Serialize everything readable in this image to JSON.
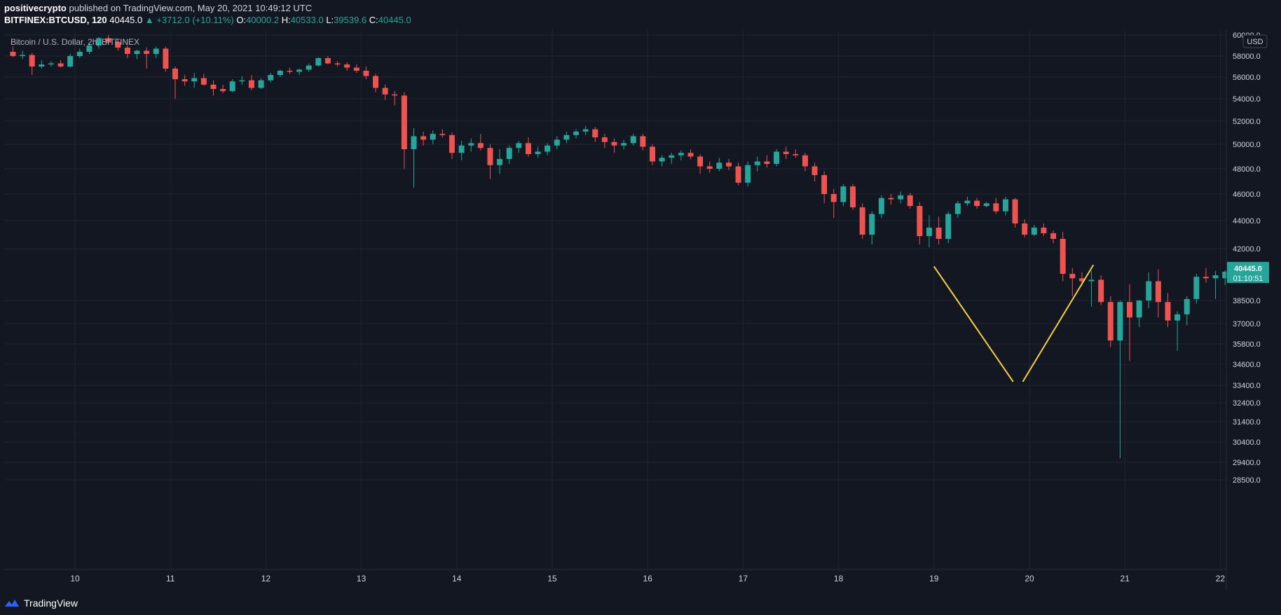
{
  "header": {
    "author": "positivecrypto",
    "published": "published on TradingView.com, May 20, 2021 10:49:12 UTC",
    "symbol": "BITFINEX:BTCUSD, 120",
    "last": "40445.0",
    "change": "▲ +3712.0 (+10.11%)",
    "o_label": "O:",
    "o_value": "40000.2",
    "h_label": "H:",
    "h_value": "40533.0",
    "l_label": "L:",
    "l_value": "39539.6",
    "c_label": "C:",
    "c_value": "40445.0"
  },
  "chart_title": "Bitcoin / U.S. Dollar, 2h, BITFINEX",
  "currency_badge": "USD",
  "price_tag": {
    "price": "40445.0",
    "countdown": "01:10:51"
  },
  "footer": {
    "brand": "TradingView"
  },
  "colors": {
    "background": "#131722",
    "up": "#26a69a",
    "down": "#ef5350",
    "trendline": "#f4d03f",
    "grid": "#1f2433",
    "text": "#d1d4dc"
  },
  "chart_data": {
    "type": "candlestick",
    "title": "Bitcoin / U.S. Dollar, 2h, BITFINEX",
    "price_ticks": [
      {
        "label": "60000.0",
        "value": 60000
      },
      {
        "label": "58000.0",
        "value": 58000
      },
      {
        "label": "56000.0",
        "value": 56000
      },
      {
        "label": "54000.0",
        "value": 54000
      },
      {
        "label": "52000.0",
        "value": 52000
      },
      {
        "label": "50000.0",
        "value": 50000
      },
      {
        "label": "48000.0",
        "value": 48000
      },
      {
        "label": "46000.0",
        "value": 46000
      },
      {
        "label": "44000.0",
        "value": 44000
      },
      {
        "label": "42000.0",
        "value": 42000
      },
      {
        "label": "38500.0",
        "value": 38500
      },
      {
        "label": "37000.0",
        "value": 37000
      },
      {
        "label": "35800.0",
        "value": 35800
      },
      {
        "label": "34600.0",
        "value": 34600
      },
      {
        "label": "33400.0",
        "value": 33400
      },
      {
        "label": "32400.0",
        "value": 32400
      },
      {
        "label": "31400.0",
        "value": 31400
      },
      {
        "label": "30400.0",
        "value": 30400
      },
      {
        "label": "29400.0",
        "value": 29400
      },
      {
        "label": "28500.0",
        "value": 28500
      }
    ],
    "date_ticks": [
      {
        "label": "10",
        "day": 10
      },
      {
        "label": "11",
        "day": 11
      },
      {
        "label": "12",
        "day": 12
      },
      {
        "label": "13",
        "day": 13
      },
      {
        "label": "14",
        "day": 14
      },
      {
        "label": "15",
        "day": 15
      },
      {
        "label": "16",
        "day": 16
      },
      {
        "label": "17",
        "day": 17
      },
      {
        "label": "18",
        "day": 18
      },
      {
        "label": "19",
        "day": 19
      },
      {
        "label": "20",
        "day": 20
      },
      {
        "label": "21",
        "day": 21
      },
      {
        "label": "22",
        "day": 22
      }
    ],
    "candles": [
      {
        "day": 9.35,
        "o": 58400,
        "h": 58900,
        "l": 57900,
        "c": 58000
      },
      {
        "day": 9.45,
        "o": 58000,
        "h": 58500,
        "l": 57700,
        "c": 58100
      },
      {
        "day": 9.55,
        "o": 58100,
        "h": 58300,
        "l": 56200,
        "c": 57000
      },
      {
        "day": 9.65,
        "o": 57000,
        "h": 57600,
        "l": 56800,
        "c": 57200
      },
      {
        "day": 9.75,
        "o": 57200,
        "h": 57500,
        "l": 57000,
        "c": 57300
      },
      {
        "day": 9.85,
        "o": 57300,
        "h": 57600,
        "l": 56900,
        "c": 57000
      },
      {
        "day": 9.95,
        "o": 57000,
        "h": 58200,
        "l": 56900,
        "c": 58000
      },
      {
        "day": 10.05,
        "o": 58000,
        "h": 58700,
        "l": 57800,
        "c": 58400
      },
      {
        "day": 10.15,
        "o": 58400,
        "h": 59200,
        "l": 58200,
        "c": 59000
      },
      {
        "day": 10.25,
        "o": 59000,
        "h": 59800,
        "l": 58700,
        "c": 59700
      },
      {
        "day": 10.35,
        "o": 59700,
        "h": 60000,
        "l": 59200,
        "c": 59300
      },
      {
        "day": 10.45,
        "o": 59300,
        "h": 59600,
        "l": 58500,
        "c": 58800
      },
      {
        "day": 10.55,
        "o": 58800,
        "h": 59000,
        "l": 57800,
        "c": 58200
      },
      {
        "day": 10.65,
        "o": 58200,
        "h": 58600,
        "l": 57700,
        "c": 58500
      },
      {
        "day": 10.75,
        "o": 58500,
        "h": 58800,
        "l": 56800,
        "c": 58200
      },
      {
        "day": 10.85,
        "o": 58200,
        "h": 58900,
        "l": 57800,
        "c": 58700
      },
      {
        "day": 10.95,
        "o": 58700,
        "h": 58900,
        "l": 56500,
        "c": 56800
      },
      {
        "day": 11.05,
        "o": 56800,
        "h": 57000,
        "l": 54000,
        "c": 55800
      },
      {
        "day": 11.15,
        "o": 55800,
        "h": 56200,
        "l": 55200,
        "c": 55600
      },
      {
        "day": 11.25,
        "o": 55600,
        "h": 56400,
        "l": 55000,
        "c": 55900
      },
      {
        "day": 11.35,
        "o": 55900,
        "h": 56300,
        "l": 55200,
        "c": 55300
      },
      {
        "day": 11.45,
        "o": 55300,
        "h": 55700,
        "l": 54300,
        "c": 54900
      },
      {
        "day": 11.55,
        "o": 54900,
        "h": 55300,
        "l": 54500,
        "c": 54700
      },
      {
        "day": 11.65,
        "o": 54700,
        "h": 55800,
        "l": 54600,
        "c": 55600
      },
      {
        "day": 11.75,
        "o": 55600,
        "h": 56100,
        "l": 55300,
        "c": 55700
      },
      {
        "day": 11.85,
        "o": 55700,
        "h": 56200,
        "l": 54800,
        "c": 55000
      },
      {
        "day": 11.95,
        "o": 55000,
        "h": 55900,
        "l": 54900,
        "c": 55700
      },
      {
        "day": 12.05,
        "o": 55700,
        "h": 56400,
        "l": 55500,
        "c": 56200
      },
      {
        "day": 12.15,
        "o": 56200,
        "h": 56700,
        "l": 56000,
        "c": 56600
      },
      {
        "day": 12.25,
        "o": 56600,
        "h": 56900,
        "l": 56300,
        "c": 56500
      },
      {
        "day": 12.35,
        "o": 56500,
        "h": 56800,
        "l": 56200,
        "c": 56700
      },
      {
        "day": 12.45,
        "o": 56700,
        "h": 57300,
        "l": 56500,
        "c": 57100
      },
      {
        "day": 12.55,
        "o": 57100,
        "h": 57900,
        "l": 57000,
        "c": 57800
      },
      {
        "day": 12.65,
        "o": 57800,
        "h": 58000,
        "l": 57200,
        "c": 57300
      },
      {
        "day": 12.75,
        "o": 57300,
        "h": 57500,
        "l": 57000,
        "c": 57200
      },
      {
        "day": 12.85,
        "o": 57200,
        "h": 57400,
        "l": 56600,
        "c": 56900
      },
      {
        "day": 12.95,
        "o": 56900,
        "h": 57200,
        "l": 56400,
        "c": 56600
      },
      {
        "day": 13.05,
        "o": 56600,
        "h": 57000,
        "l": 55800,
        "c": 56100
      },
      {
        "day": 13.15,
        "o": 56100,
        "h": 56300,
        "l": 54600,
        "c": 55000
      },
      {
        "day": 13.25,
        "o": 55000,
        "h": 55300,
        "l": 53900,
        "c": 54400
      },
      {
        "day": 13.35,
        "o": 54400,
        "h": 54700,
        "l": 53400,
        "c": 54300
      },
      {
        "day": 13.45,
        "o": 54300,
        "h": 54600,
        "l": 48000,
        "c": 49600
      },
      {
        "day": 13.55,
        "o": 49600,
        "h": 51400,
        "l": 46500,
        "c": 50700
      },
      {
        "day": 13.65,
        "o": 50700,
        "h": 51100,
        "l": 49900,
        "c": 50400
      },
      {
        "day": 13.75,
        "o": 50400,
        "h": 51200,
        "l": 50000,
        "c": 50900
      },
      {
        "day": 13.85,
        "o": 50900,
        "h": 51300,
        "l": 50600,
        "c": 50800
      },
      {
        "day": 13.95,
        "o": 50800,
        "h": 51000,
        "l": 48800,
        "c": 49300
      },
      {
        "day": 14.05,
        "o": 49300,
        "h": 50300,
        "l": 48700,
        "c": 49900
      },
      {
        "day": 14.15,
        "o": 49900,
        "h": 50500,
        "l": 49400,
        "c": 50100
      },
      {
        "day": 14.25,
        "o": 50100,
        "h": 50900,
        "l": 49500,
        "c": 49700
      },
      {
        "day": 14.35,
        "o": 49700,
        "h": 50000,
        "l": 47200,
        "c": 48300
      },
      {
        "day": 14.45,
        "o": 48300,
        "h": 49600,
        "l": 47600,
        "c": 48800
      },
      {
        "day": 14.55,
        "o": 48800,
        "h": 49900,
        "l": 48400,
        "c": 49700
      },
      {
        "day": 14.65,
        "o": 49700,
        "h": 50300,
        "l": 49300,
        "c": 50100
      },
      {
        "day": 14.75,
        "o": 50100,
        "h": 50600,
        "l": 49000,
        "c": 49200
      },
      {
        "day": 14.85,
        "o": 49200,
        "h": 49800,
        "l": 48900,
        "c": 49400
      },
      {
        "day": 14.95,
        "o": 49400,
        "h": 50100,
        "l": 49100,
        "c": 49900
      },
      {
        "day": 15.05,
        "o": 49900,
        "h": 50700,
        "l": 49600,
        "c": 50400
      },
      {
        "day": 15.15,
        "o": 50400,
        "h": 51100,
        "l": 50100,
        "c": 50800
      },
      {
        "day": 15.25,
        "o": 50800,
        "h": 51300,
        "l": 50500,
        "c": 51100
      },
      {
        "day": 15.35,
        "o": 51100,
        "h": 51600,
        "l": 50800,
        "c": 51300
      },
      {
        "day": 15.45,
        "o": 51300,
        "h": 51500,
        "l": 50200,
        "c": 50600
      },
      {
        "day": 15.55,
        "o": 50600,
        "h": 50900,
        "l": 49700,
        "c": 50200
      },
      {
        "day": 15.65,
        "o": 50200,
        "h": 50500,
        "l": 49300,
        "c": 49900
      },
      {
        "day": 15.75,
        "o": 49900,
        "h": 50400,
        "l": 49600,
        "c": 50100
      },
      {
        "day": 15.85,
        "o": 50100,
        "h": 50900,
        "l": 49900,
        "c": 50700
      },
      {
        "day": 15.95,
        "o": 50700,
        "h": 50900,
        "l": 49500,
        "c": 49800
      },
      {
        "day": 16.05,
        "o": 49800,
        "h": 50000,
        "l": 48300,
        "c": 48600
      },
      {
        "day": 16.15,
        "o": 48600,
        "h": 49100,
        "l": 48200,
        "c": 48900
      },
      {
        "day": 16.25,
        "o": 48900,
        "h": 49300,
        "l": 48400,
        "c": 49100
      },
      {
        "day": 16.35,
        "o": 49100,
        "h": 49500,
        "l": 48700,
        "c": 49300
      },
      {
        "day": 16.45,
        "o": 49300,
        "h": 49600,
        "l": 48800,
        "c": 49000
      },
      {
        "day": 16.55,
        "o": 49000,
        "h": 49200,
        "l": 47600,
        "c": 48200
      },
      {
        "day": 16.65,
        "o": 48200,
        "h": 48600,
        "l": 47700,
        "c": 48000
      },
      {
        "day": 16.75,
        "o": 48000,
        "h": 48900,
        "l": 47800,
        "c": 48500
      },
      {
        "day": 16.85,
        "o": 48500,
        "h": 48800,
        "l": 47900,
        "c": 48200
      },
      {
        "day": 16.95,
        "o": 48200,
        "h": 48500,
        "l": 46700,
        "c": 46900
      },
      {
        "day": 17.05,
        "o": 46900,
        "h": 48600,
        "l": 46600,
        "c": 48300
      },
      {
        "day": 17.15,
        "o": 48300,
        "h": 49000,
        "l": 47800,
        "c": 48600
      },
      {
        "day": 17.25,
        "o": 48600,
        "h": 49100,
        "l": 48100,
        "c": 48400
      },
      {
        "day": 17.35,
        "o": 48400,
        "h": 49600,
        "l": 48200,
        "c": 49400
      },
      {
        "day": 17.45,
        "o": 49400,
        "h": 49800,
        "l": 48800,
        "c": 49200
      },
      {
        "day": 17.55,
        "o": 49200,
        "h": 49600,
        "l": 48900,
        "c": 49100
      },
      {
        "day": 17.65,
        "o": 49100,
        "h": 49300,
        "l": 47800,
        "c": 48200
      },
      {
        "day": 17.75,
        "o": 48200,
        "h": 48500,
        "l": 47000,
        "c": 47500
      },
      {
        "day": 17.85,
        "o": 47500,
        "h": 47800,
        "l": 45300,
        "c": 46000
      },
      {
        "day": 17.95,
        "o": 46000,
        "h": 46400,
        "l": 44200,
        "c": 45400
      },
      {
        "day": 18.05,
        "o": 45400,
        "h": 46800,
        "l": 45100,
        "c": 46600
      },
      {
        "day": 18.15,
        "o": 46600,
        "h": 46800,
        "l": 44800,
        "c": 45000
      },
      {
        "day": 18.25,
        "o": 45000,
        "h": 45300,
        "l": 42700,
        "c": 43000
      },
      {
        "day": 18.35,
        "o": 43000,
        "h": 44700,
        "l": 42300,
        "c": 44500
      },
      {
        "day": 18.45,
        "o": 44500,
        "h": 45900,
        "l": 44200,
        "c": 45700
      },
      {
        "day": 18.55,
        "o": 45700,
        "h": 46000,
        "l": 45200,
        "c": 45600
      },
      {
        "day": 18.65,
        "o": 45600,
        "h": 46200,
        "l": 45300,
        "c": 45900
      },
      {
        "day": 18.75,
        "o": 45900,
        "h": 46100,
        "l": 44900,
        "c": 45100
      },
      {
        "day": 18.85,
        "o": 45100,
        "h": 45400,
        "l": 42300,
        "c": 42900
      },
      {
        "day": 18.95,
        "o": 42900,
        "h": 44400,
        "l": 42100,
        "c": 43500
      },
      {
        "day": 19.05,
        "o": 43500,
        "h": 44300,
        "l": 42300,
        "c": 42700
      },
      {
        "day": 19.15,
        "o": 42700,
        "h": 44700,
        "l": 42400,
        "c": 44500
      },
      {
        "day": 19.25,
        "o": 44500,
        "h": 45500,
        "l": 44200,
        "c": 45300
      },
      {
        "day": 19.35,
        "o": 45300,
        "h": 45800,
        "l": 45100,
        "c": 45500
      },
      {
        "day": 19.45,
        "o": 45500,
        "h": 45700,
        "l": 44900,
        "c": 45100
      },
      {
        "day": 19.55,
        "o": 45100,
        "h": 45400,
        "l": 45000,
        "c": 45300
      },
      {
        "day": 19.65,
        "o": 45300,
        "h": 45700,
        "l": 44500,
        "c": 44700
      },
      {
        "day": 19.75,
        "o": 44700,
        "h": 45800,
        "l": 44400,
        "c": 45600
      },
      {
        "day": 19.85,
        "o": 45600,
        "h": 45700,
        "l": 43500,
        "c": 43800
      },
      {
        "day": 19.95,
        "o": 43800,
        "h": 44100,
        "l": 42800,
        "c": 43000
      },
      {
        "day": 20.05,
        "o": 43000,
        "h": 43700,
        "l": 42900,
        "c": 43500
      },
      {
        "day": 20.15,
        "o": 43500,
        "h": 43800,
        "l": 42900,
        "c": 43100
      },
      {
        "day": 20.25,
        "o": 43100,
        "h": 43300,
        "l": 42400,
        "c": 42700
      },
      {
        "day": 20.35,
        "o": 42700,
        "h": 43200,
        "l": 39800,
        "c": 40300
      },
      {
        "day": 20.45,
        "o": 40300,
        "h": 40700,
        "l": 38800,
        "c": 40000
      },
      {
        "day": 20.55,
        "o": 40000,
        "h": 40400,
        "l": 39500,
        "c": 39800
      },
      {
        "day": 20.65,
        "o": 39800,
        "h": 40500,
        "l": 38100,
        "c": 39900
      },
      {
        "day": 20.75,
        "o": 39900,
        "h": 40200,
        "l": 38200,
        "c": 38400
      },
      {
        "day": 20.85,
        "o": 38400,
        "h": 38800,
        "l": 35600,
        "c": 36000
      },
      {
        "day": 20.95,
        "o": 36000,
        "h": 38500,
        "l": 29600,
        "c": 38400
      },
      {
        "day": 21.05,
        "o": 38400,
        "h": 39600,
        "l": 34800,
        "c": 37400
      },
      {
        "day": 21.15,
        "o": 37400,
        "h": 38500,
        "l": 36800,
        "c": 38500
      },
      {
        "day": 21.25,
        "o": 38500,
        "h": 40400,
        "l": 38000,
        "c": 39800
      },
      {
        "day": 21.35,
        "o": 39800,
        "h": 40600,
        "l": 37400,
        "c": 38400
      },
      {
        "day": 21.45,
        "o": 38400,
        "h": 39000,
        "l": 36800,
        "c": 37200
      },
      {
        "day": 21.55,
        "o": 37200,
        "h": 37800,
        "l": 35400,
        "c": 37600
      },
      {
        "day": 21.65,
        "o": 37600,
        "h": 38800,
        "l": 36900,
        "c": 38600
      },
      {
        "day": 21.75,
        "o": 38600,
        "h": 40300,
        "l": 38300,
        "c": 40100
      },
      {
        "day": 21.85,
        "o": 40100,
        "h": 40700,
        "l": 39700,
        "c": 40000
      },
      {
        "day": 21.95,
        "o": 40000,
        "h": 40500,
        "l": 38600,
        "c": 40200
      },
      {
        "day": 22.05,
        "o": 40000,
        "h": 40533,
        "l": 39540,
        "c": 40445
      }
    ],
    "trendlines": [
      {
        "from": {
          "day": 19.0,
          "price": 40800
        },
        "to": {
          "day": 19.83,
          "price": 33600
        }
      },
      {
        "from": {
          "day": 19.93,
          "price": 33600
        },
        "to": {
          "day": 20.67,
          "price": 40900
        }
      }
    ]
  }
}
